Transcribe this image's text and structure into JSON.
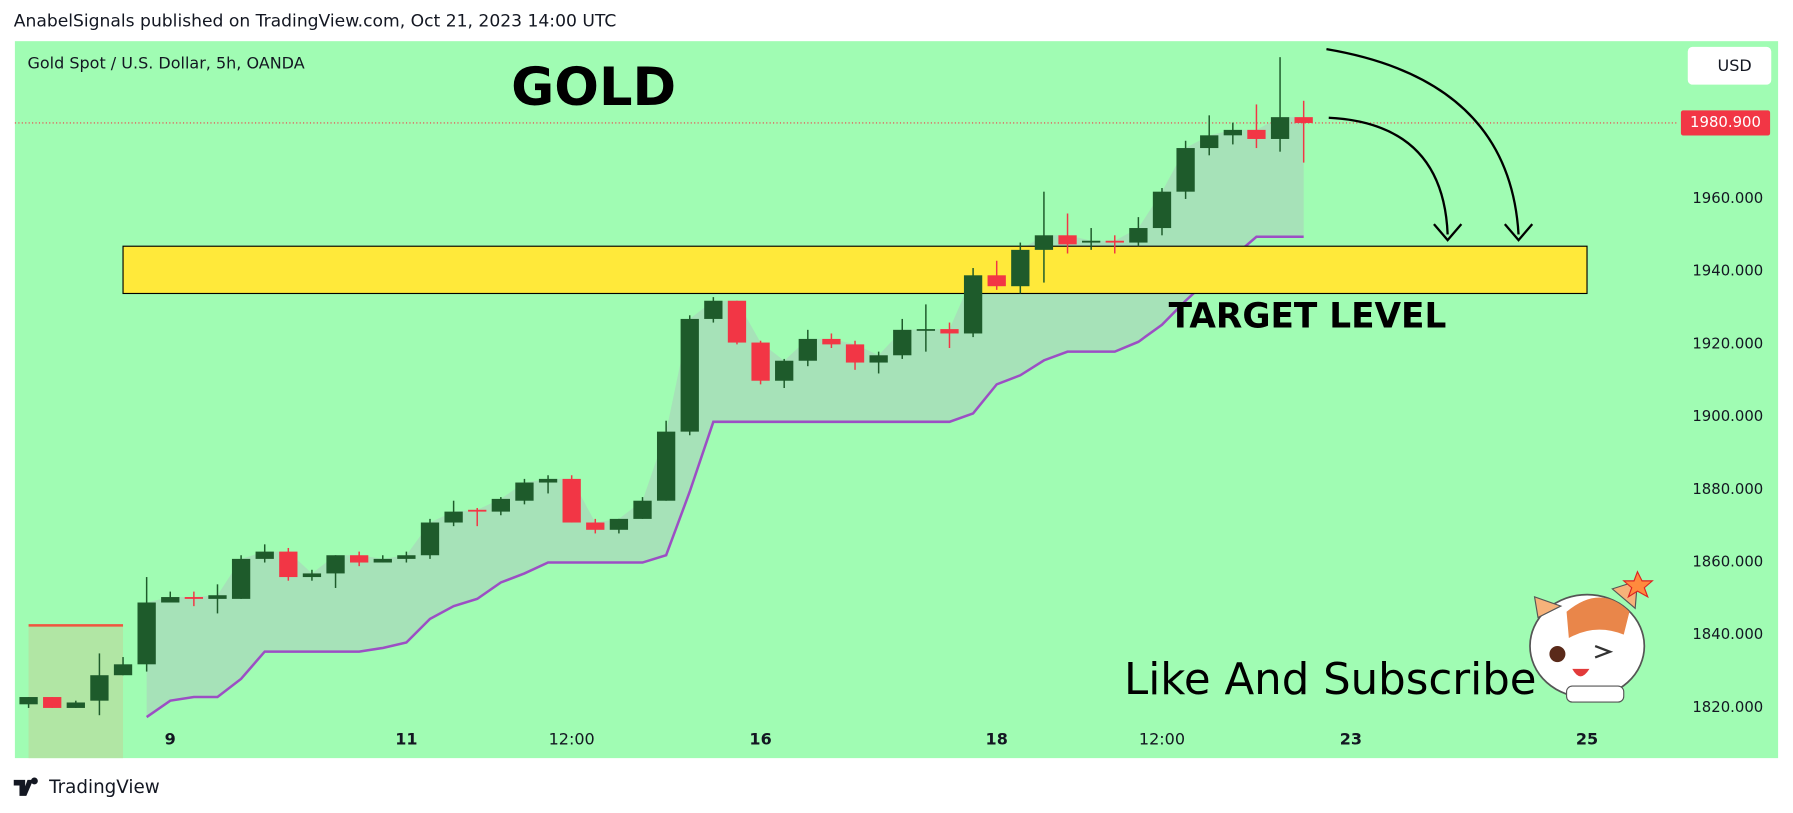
{
  "header": "AnabelSignals published on TradingView.com, Oct 21, 2023 14:00 UTC",
  "footer": "TradingView",
  "chart_data": {
    "type": "candlestick",
    "symbol": "Gold Spot / U.S. Dollar, 5h, OANDA",
    "title": "GOLD",
    "currency": "USD",
    "annotation": "TARGET LEVEL",
    "call_to_action": "Like And Subscribe",
    "x": [
      0,
      1,
      2,
      3,
      4,
      5,
      6,
      7,
      8,
      9,
      10,
      11,
      12,
      13,
      14,
      15,
      16,
      17,
      18,
      19,
      20,
      21,
      22,
      23,
      24,
      25,
      26,
      27,
      28,
      29,
      30,
      31,
      32,
      33,
      34,
      35,
      36,
      37,
      38,
      39,
      40,
      41,
      42,
      43,
      44,
      45,
      46,
      47,
      48,
      49,
      50,
      51,
      52,
      53,
      54
    ],
    "open": [
      1821,
      1823,
      1820,
      1822,
      1829,
      1832,
      1849,
      1850.5,
      1850,
      1850,
      1861,
      1863,
      1856,
      1857,
      1862,
      1860,
      1861,
      1862,
      1871,
      1874.5,
      1874,
      1877,
      1882,
      1883,
      1871,
      1869,
      1872,
      1877,
      1896,
      1927,
      1932,
      1920.5,
      1910,
      1915.5,
      1921.5,
      1920,
      1915,
      1917,
      1924,
      1924.2,
      1923,
      1939,
      1936,
      1946,
      1950,
      1948,
      1948.5,
      1948,
      1952,
      1962,
      1974,
      1977.5,
      1979,
      1976.5,
      1982.5
    ],
    "high": [
      1823,
      1823,
      1822,
      1835,
      1834,
      1856,
      1852,
      1852,
      1854,
      1862,
      1865,
      1864,
      1858,
      1862,
      1863,
      1862,
      1863,
      1872,
      1877,
      1875,
      1878,
      1883,
      1884,
      1884,
      1872,
      1872,
      1878,
      1899,
      1928,
      1933,
      1932,
      1921,
      1916,
      1924,
      1923,
      1921,
      1918,
      1927,
      1931,
      1926,
      1941,
      1943,
      1948,
      1962,
      1956,
      1952,
      1950,
      1955,
      1963,
      1976,
      1983,
      1981,
      1986,
      1999,
      1987
    ],
    "low": [
      1820,
      1820,
      1820,
      1818,
      1829,
      1830,
      1849,
      1848,
      1846,
      1850,
      1860,
      1855,
      1855,
      1853,
      1859,
      1860,
      1860,
      1861,
      1870,
      1870,
      1873,
      1876,
      1879,
      1871,
      1868,
      1868,
      1872,
      1877,
      1895,
      1926,
      1920,
      1909,
      1908,
      1914,
      1919,
      1913,
      1912,
      1916,
      1918,
      1919,
      1922,
      1935,
      1934,
      1937,
      1945,
      1946,
      1945,
      1947,
      1950,
      1960,
      1972,
      1975,
      1974,
      1973,
      1970
    ],
    "close": [
      1823,
      1820,
      1821.5,
      1829,
      1832,
      1849,
      1850.5,
      1850,
      1851,
      1861,
      1863,
      1856,
      1857,
      1862,
      1860,
      1861,
      1862,
      1871,
      1874,
      1874,
      1877.5,
      1882,
      1883,
      1871,
      1869,
      1872,
      1877,
      1896,
      1927,
      1932,
      1920.5,
      1910,
      1915.5,
      1921.5,
      1920,
      1915,
      1917,
      1924,
      1924.2,
      1923,
      1939,
      1936,
      1946,
      1950,
      1947.5,
      1948.5,
      1948,
      1952,
      1962,
      1974,
      1977.5,
      1979,
      1976.5,
      1982.5,
      1980.9
    ],
    "up_color": "#1e5b2b",
    "down_color": "#f23645",
    "supertrend_up": {
      "color": "#9c4fc4",
      "values": [
        null,
        null,
        null,
        null,
        null,
        1817.5,
        1822,
        1823,
        1823,
        1828,
        1835.5,
        1835.5,
        1835.5,
        1835.5,
        1835.5,
        1836.5,
        1838,
        1844.5,
        1848,
        1850,
        1854.5,
        1857,
        1860,
        1860,
        1860,
        1860,
        1860,
        1862,
        1879.5,
        1898.7,
        1898.7,
        1898.7,
        1898.7,
        1898.7,
        1898.7,
        1898.7,
        1898.7,
        1898.7,
        1898.7,
        1898.7,
        1901,
        1909,
        1911.5,
        1915.6,
        1918,
        1918,
        1918,
        1920.7,
        1925.4,
        1932,
        1938,
        1944,
        1949.6,
        1949.6,
        1949.6
      ]
    },
    "supertrend_down": {
      "color": "#f0553f",
      "values": [
        1842.7,
        1842.7,
        1842.7,
        1842.7,
        1842.7,
        null,
        null,
        null,
        null,
        null,
        null,
        null,
        null,
        null,
        null,
        null,
        null,
        null,
        null,
        null,
        null,
        null,
        null,
        null,
        null,
        null,
        null,
        null,
        null,
        null,
        null,
        null,
        null,
        null,
        null,
        null,
        null,
        null,
        null,
        null,
        null,
        null,
        null,
        null,
        null,
        null,
        null,
        null,
        null,
        null,
        null,
        null,
        null,
        null,
        null
      ]
    },
    "target_zone": {
      "low": 1934,
      "high": 1947,
      "from_x": 4,
      "to_x": 66,
      "color": "#ffe93a"
    },
    "last_price": {
      "value": 1980.9,
      "label": "1980.900"
    },
    "xlim": [
      -0.58,
      69.25
    ],
    "xticks": [
      6,
      16,
      {
        "value": 23,
        "label": "12:00"
      },
      31,
      41,
      {
        "value": 48,
        "label": "12:00"
      },
      56,
      66
    ],
    "xtick_labels": [
      "9",
      "11",
      "12:00",
      "16",
      "18",
      "12:00",
      "23",
      "25"
    ],
    "ylim": [
      1806.2,
      2003.4
    ],
    "yticks": [
      {
        "value": 1820,
        "label": "1820.000"
      },
      {
        "value": 1840,
        "label": "1840.000"
      },
      {
        "value": 1860,
        "label": "1860.000"
      },
      {
        "value": 1880,
        "label": "1880.000"
      },
      {
        "value": 1900,
        "label": "1900.000"
      },
      {
        "value": 1920,
        "label": "1920.000"
      },
      {
        "value": 1940,
        "label": "1940.000"
      },
      {
        "value": 1960,
        "label": "1960.000"
      }
    ],
    "background": "#a0fcb3"
  }
}
